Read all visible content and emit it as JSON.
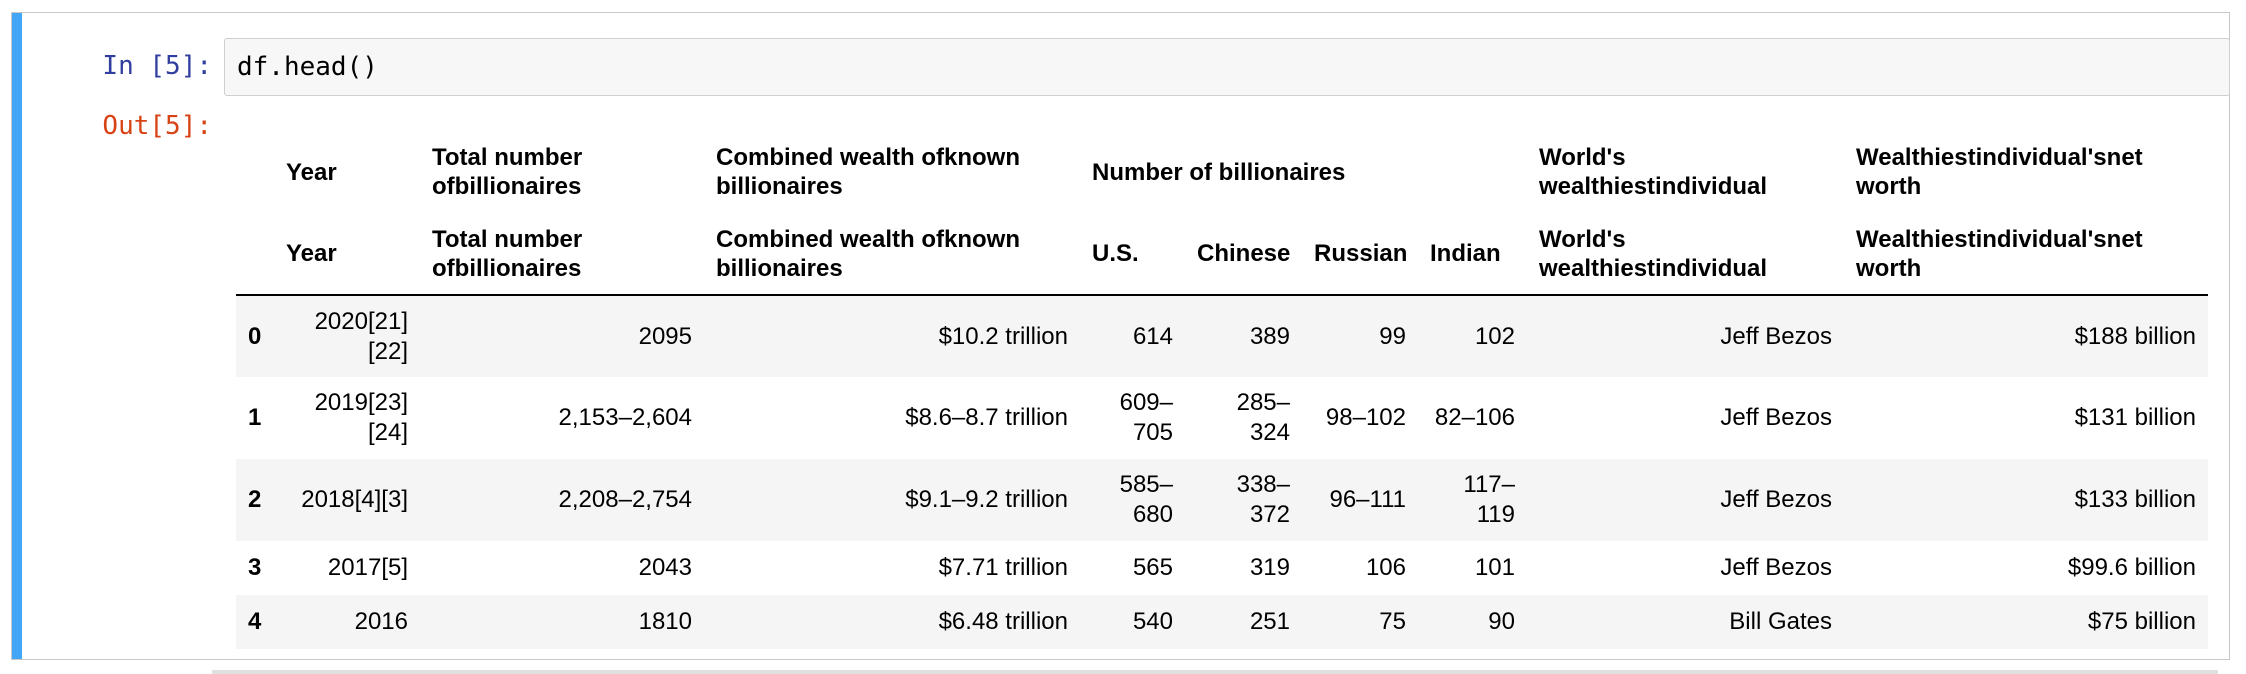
{
  "input_prompt": "In [5]:",
  "output_prompt": "Out[5]:",
  "code": "df.head()",
  "table": {
    "header_top": {
      "index": "",
      "year": "Year",
      "total": "Total number ofbillionaires",
      "combined": "Combined wealth ofknown billionaires",
      "number_group": "Number of billionaires",
      "worlds": "World's wealthiestindividual",
      "networth": "Wealthiestindividual'snet worth"
    },
    "header_sub": {
      "index": "",
      "year": "Year",
      "total": "Total number ofbillionaires",
      "combined": "Combined wealth ofknown billionaires",
      "us": "U.S.",
      "chinese": "Chinese",
      "russian": "Russian",
      "indian": "Indian",
      "worlds": "World's wealthiestindividual",
      "networth": "Wealthiestindividual'snet worth"
    },
    "rows": [
      {
        "index": "0",
        "year": "2020[21][22]",
        "total": "2095",
        "combined": "$10.2 trillion",
        "us": "614",
        "chinese": "389",
        "russian": "99",
        "indian": "102",
        "worlds": "Jeff Bezos",
        "networth": "$188 billion"
      },
      {
        "index": "1",
        "year": "2019[23][24]",
        "total": "2,153–2,604",
        "combined": "$8.6–8.7 trillion",
        "us": "609–705",
        "chinese": "285–324",
        "russian": "98–102",
        "indian": "82–106",
        "worlds": "Jeff Bezos",
        "networth": "$131 billion"
      },
      {
        "index": "2",
        "year": "2018[4][3]",
        "total": "2,208–2,754",
        "combined": "$9.1–9.2 trillion",
        "us": "585–680",
        "chinese": "338–372",
        "russian": "96–111",
        "indian": "117–119",
        "worlds": "Jeff Bezos",
        "networth": "$133 billion"
      },
      {
        "index": "3",
        "year": "2017[5]",
        "total": "2043",
        "combined": "$7.71 trillion",
        "us": "565",
        "chinese": "319",
        "russian": "106",
        "indian": "101",
        "worlds": "Jeff Bezos",
        "networth": "$99.6 billion"
      },
      {
        "index": "4",
        "year": "2016",
        "total": "1810",
        "combined": "$6.48 trillion",
        "us": "540",
        "chinese": "251",
        "russian": "75",
        "indian": "90",
        "worlds": "Bill Gates",
        "networth": "$75 billion"
      }
    ]
  }
}
